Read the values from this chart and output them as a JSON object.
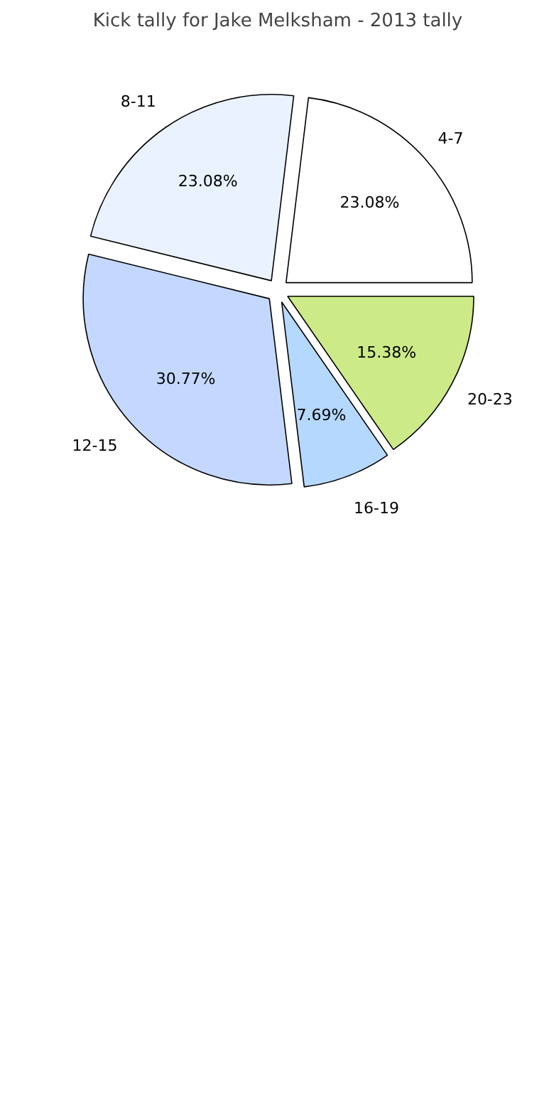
{
  "chart_data": {
    "type": "pie",
    "title": "Kick tally for Jake Melksham - 2013 tally",
    "categories": [
      "4-7",
      "8-11",
      "12-15",
      "16-19",
      "20-23"
    ],
    "values": [
      23.08,
      23.08,
      30.77,
      7.69,
      15.38
    ],
    "colors": [
      "#ffffff",
      "#eaf2ff",
      "#c4d8ff",
      "#b5d8ff",
      "#cdea88"
    ],
    "value_labels": [
      "23.08%",
      "23.08%",
      "30.77%",
      "7.69%",
      "15.38%"
    ]
  }
}
